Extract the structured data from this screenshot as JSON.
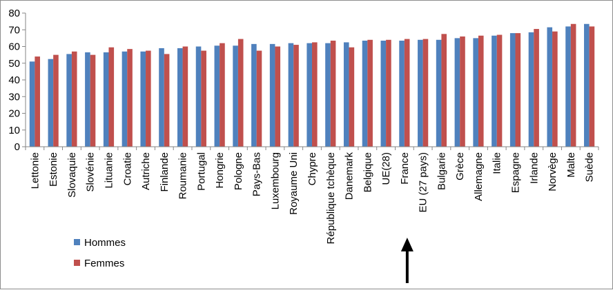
{
  "chart_data": {
    "type": "bar",
    "categories": [
      "Lettonie",
      "Estonie",
      "Slovaquie",
      "Slovénie",
      "Lituanie",
      "Croatie",
      "Autriche",
      "Finlande",
      "Roumanie",
      "Portugal",
      "Hongrie",
      "Pologne",
      "Pays-Bas",
      "Luxembourg",
      "Royaume Uni",
      "Chypre",
      "République tchèque",
      "Danemark",
      "Belgique",
      "UE(28)",
      "France",
      "EU (27 pays)",
      "Bulgarie",
      "Grèce",
      "Allemagne",
      "Italie",
      "Espagne",
      "Irlande",
      "Norvège",
      "Malte",
      "Suède"
    ],
    "series": [
      {
        "name": "Hommes",
        "color": "#4f81bd",
        "values": [
          51,
          52.5,
          55.5,
          56.5,
          56.5,
          57,
          57,
          59,
          59,
          60,
          60.5,
          60.5,
          61.5,
          61.5,
          62,
          62,
          62,
          62.5,
          63.5,
          63.5,
          63.5,
          64,
          64,
          65,
          65,
          66.5,
          68,
          68.5,
          71.5,
          72,
          73.5
        ]
      },
      {
        "name": "Femmes",
        "color": "#c0504d",
        "values": [
          54,
          55,
          57,
          55,
          59.5,
          58.5,
          57.5,
          55.5,
          60,
          57.5,
          62,
          64.5,
          57.5,
          60,
          61,
          62.5,
          63.5,
          59.5,
          64,
          64,
          64.5,
          64.5,
          67.5,
          66,
          66.5,
          67,
          68,
          70.5,
          69,
          73.5,
          72
        ]
      }
    ],
    "ylim": [
      0,
      80
    ],
    "yticks": [
      0,
      10,
      20,
      30,
      40,
      50,
      60,
      70,
      80
    ],
    "grid": false,
    "legend": "bottom-left",
    "xlabel": "",
    "ylabel": "",
    "title": "",
    "annotation": {
      "type": "arrow",
      "target": "France",
      "direction": "up"
    }
  }
}
